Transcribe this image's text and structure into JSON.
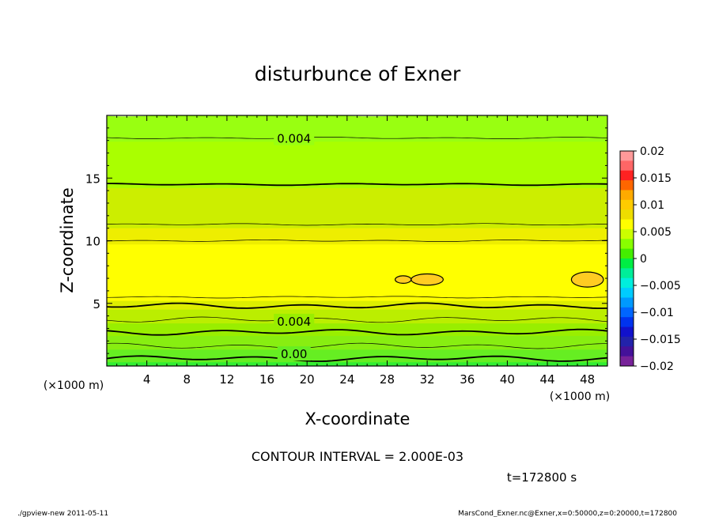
{
  "chart_data": {
    "type": "heatmap",
    "title": "disturbunce of Exner",
    "xlabel": "X-coordinate",
    "ylabel": "Z-coordinate",
    "x_unit_left": "(×1000 m)",
    "x_unit_right": "(×1000 m)",
    "xlim": [
      0,
      50
    ],
    "ylim": [
      0,
      20
    ],
    "x_ticks": [
      4,
      8,
      12,
      16,
      20,
      24,
      28,
      32,
      36,
      40,
      44,
      48
    ],
    "y_ticks": [
      5,
      10,
      15
    ],
    "contour_interval_text": "CONTOUR INTERVAL = 2.000E-03",
    "time_text": "t=172800 s",
    "contour_labels": [
      {
        "text": "0.004",
        "x": 18.7,
        "z": 18.2
      },
      {
        "text": "0.004",
        "x": 18.7,
        "z": 3.6
      },
      {
        "text": "0.00",
        "x": 18.7,
        "z": 1.0
      }
    ],
    "bands": [
      {
        "z_low": 0.0,
        "z_high": 0.6,
        "color": "#33ee33"
      },
      {
        "z_low": 0.6,
        "z_high": 1.6,
        "color": "#66ee22"
      },
      {
        "z_low": 1.6,
        "z_high": 2.7,
        "color": "#88ee11"
      },
      {
        "z_low": 2.7,
        "z_high": 3.7,
        "color": "#99ee00"
      },
      {
        "z_low": 3.7,
        "z_high": 4.8,
        "color": "#bbee00"
      },
      {
        "z_low": 4.8,
        "z_high": 5.5,
        "color": "#ddee00"
      },
      {
        "z_low": 5.5,
        "z_high": 10.0,
        "color": "#ffff00"
      },
      {
        "z_low": 10.0,
        "z_high": 11.3,
        "color": "#eeee00"
      },
      {
        "z_low": 11.3,
        "z_high": 14.5,
        "color": "#ccee00"
      },
      {
        "z_low": 14.5,
        "z_high": 18.2,
        "color": "#aaff00"
      },
      {
        "z_low": 18.2,
        "z_high": 20.0,
        "color": "#99ff11"
      }
    ],
    "colorbar": {
      "ticks": [
        "0.02",
        "0.015",
        "0.01",
        "0.005",
        "0",
        "−0.005",
        "−0.01",
        "−0.015",
        "−0.02"
      ],
      "colors": [
        "#ff9999",
        "#ff6666",
        "#ff2222",
        "#ff6600",
        "#ffaa00",
        "#ffcc00",
        "#eedd00",
        "#ffff00",
        "#ccff00",
        "#88ff00",
        "#44ee00",
        "#00ee44",
        "#00ee99",
        "#00eedd",
        "#00ccff",
        "#0099ff",
        "#0066ff",
        "#0033ee",
        "#1111cc",
        "#2222aa",
        "#441199",
        "#772299"
      ]
    }
  },
  "footer": {
    "left": "./gpview-new   2011-05-11",
    "right": "MarsCond_Exner.nc@Exner,x=0:50000,z=0:20000,t=172800"
  }
}
